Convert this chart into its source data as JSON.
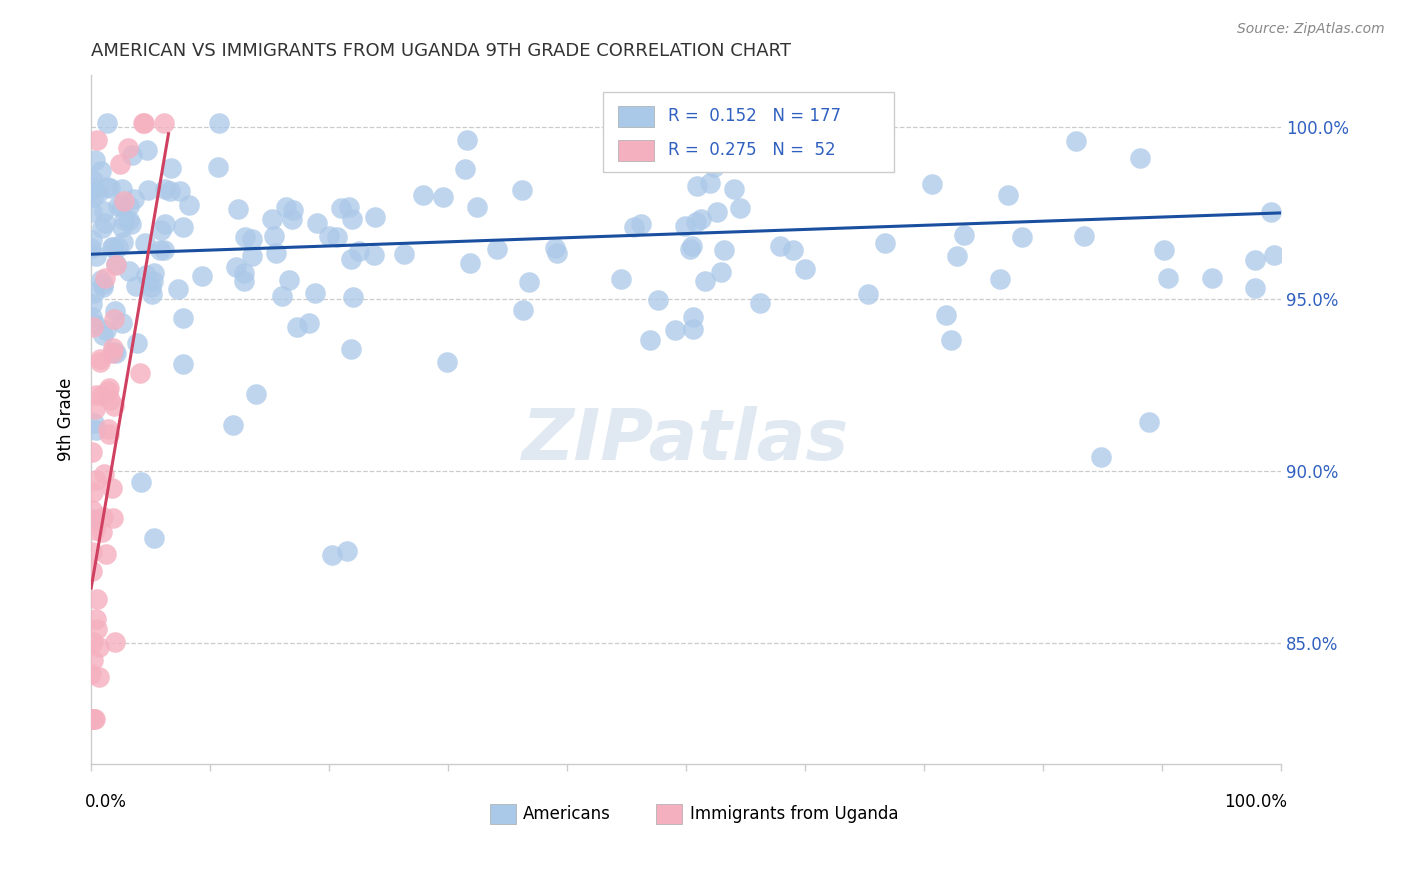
{
  "title": "AMERICAN VS IMMIGRANTS FROM UGANDA 9TH GRADE CORRELATION CHART",
  "source_text": "Source: ZipAtlas.com",
  "ylabel": "9th Grade",
  "legend_R_american": "0.152",
  "legend_N_american": "177",
  "legend_R_uganda": "0.275",
  "legend_N_uganda": "52",
  "watermark": "ZIPatlas",
  "blue_scatter_color": "#aac8e8",
  "pink_scatter_color": "#f5b0c0",
  "blue_line_color": "#1a4fa0",
  "pink_line_color": "#d04060",
  "title_color": "#333333",
  "right_axis_color": "#3060c0",
  "source_color": "#888888",
  "xlim": [
    0.0,
    1.0
  ],
  "ylim": [
    0.815,
    1.015
  ],
  "ytick_vals": [
    0.85,
    0.9,
    0.95,
    1.0
  ],
  "ytick_labels": [
    "85.0%",
    "90.0%",
    "95.0%",
    "100.0%"
  ]
}
